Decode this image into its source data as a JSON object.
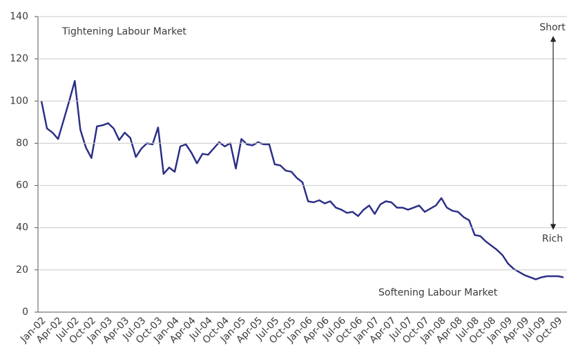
{
  "chart_data": {
    "type": "line",
    "annotations": [
      "Tightening Labour Market",
      "Softening Labour Market",
      "Short",
      "Rich"
    ],
    "categories": [
      "Jan-02",
      null,
      null,
      "Apr-02",
      null,
      null,
      "Jul-02",
      null,
      null,
      "Oct-02",
      null,
      null,
      "Jan-03",
      null,
      null,
      "Apr-03",
      null,
      null,
      "Jul-03",
      null,
      null,
      "Oct-03",
      null,
      null,
      "Jan-04",
      null,
      null,
      "Apr-04",
      null,
      null,
      "Jul-04",
      null,
      null,
      "Oct-04",
      null,
      null,
      "Jan-05",
      null,
      null,
      "Apr-05",
      null,
      null,
      "Jul-05",
      null,
      null,
      "Oct-05",
      null,
      null,
      "Jan-06",
      null,
      null,
      "Apr-06",
      null,
      null,
      "Jul-06",
      null,
      null,
      "Oct-06",
      null,
      null,
      "Jan-07",
      null,
      null,
      "Apr-07",
      null,
      null,
      "Jul-07",
      null,
      null,
      "Oct-07",
      null,
      null,
      "Jan-08",
      null,
      null,
      "Apr-08",
      null,
      null,
      "Jul-08",
      null,
      null,
      "Oct-08",
      null,
      null,
      "Jan-09",
      null,
      null,
      "Apr-09",
      null,
      null,
      "Jul-09",
      null,
      null,
      "Oct-09",
      null
    ],
    "values": [
      100,
      87,
      85,
      82,
      91,
      100,
      109.5,
      86.5,
      78,
      73,
      88,
      88.5,
      89.5,
      87,
      81.5,
      85,
      82.5,
      73.5,
      77.5,
      80,
      79.5,
      87.5,
      65.5,
      68.5,
      66.5,
      78.5,
      79.5,
      75.5,
      70.5,
      75,
      74.5,
      77.5,
      80.5,
      78.5,
      80,
      68,
      82,
      79.5,
      79,
      80.5,
      79.5,
      79.5,
      70,
      69.5,
      67,
      66.5,
      63.5,
      61.5,
      52.5,
      52,
      53,
      51.5,
      52.5,
      49.5,
      48.5,
      47,
      47.5,
      45.5,
      48.5,
      50.5,
      46.5,
      51,
      52.5,
      52,
      49.5,
      49.5,
      48.5,
      49.5,
      50.5,
      47.5,
      49,
      50.5,
      54,
      49.5,
      48,
      47.5,
      45,
      43.5,
      36.5,
      36,
      33.5,
      31.5,
      29.5,
      27,
      23,
      20.5,
      19,
      17.5,
      16.5,
      15.5,
      16.5,
      17,
      17,
      17,
      16.5
    ],
    "color": "#2b2f86",
    "ylim": [
      0,
      140
    ],
    "yticks": [
      0,
      20,
      40,
      60,
      80,
      100,
      120,
      140
    ],
    "grid": true
  }
}
